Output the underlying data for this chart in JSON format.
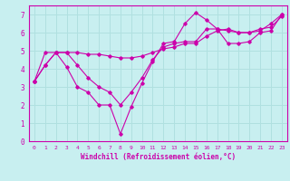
{
  "xlabel": "Windchill (Refroidissement éolien,°C)",
  "bg_color": "#c8eff0",
  "grid_color": "#b0e0e0",
  "line_color": "#cc00aa",
  "xlim": [
    -0.5,
    23.5
  ],
  "ylim": [
    0,
    7.5
  ],
  "xticks": [
    0,
    1,
    2,
    3,
    4,
    5,
    6,
    7,
    8,
    9,
    10,
    11,
    12,
    13,
    14,
    15,
    16,
    17,
    18,
    19,
    20,
    21,
    22,
    23
  ],
  "yticks": [
    0,
    1,
    2,
    3,
    4,
    5,
    6,
    7
  ],
  "series": {
    "line1": {
      "x": [
        0,
        1,
        2,
        3,
        4,
        5,
        6,
        7,
        8,
        9,
        10,
        11,
        12,
        13,
        14,
        15,
        16,
        17,
        18,
        19,
        20,
        21,
        22,
        23
      ],
      "y": [
        3.3,
        4.2,
        4.9,
        4.1,
        3.0,
        2.7,
        2.0,
        2.0,
        0.4,
        1.9,
        3.2,
        4.4,
        5.4,
        5.5,
        6.5,
        7.1,
        6.7,
        6.2,
        6.1,
        6.0,
        6.0,
        6.1,
        6.5,
        7.0
      ]
    },
    "line2": {
      "x": [
        0,
        1,
        2,
        3,
        4,
        5,
        6,
        7,
        8,
        9,
        10,
        11,
        12,
        13,
        14,
        15,
        16,
        17,
        18,
        19,
        20,
        21,
        22,
        23
      ],
      "y": [
        3.3,
        4.2,
        4.9,
        4.9,
        4.2,
        3.5,
        3.0,
        2.7,
        2.0,
        2.7,
        3.5,
        4.5,
        5.2,
        5.4,
        5.5,
        5.5,
        6.2,
        6.2,
        5.4,
        5.4,
        5.5,
        6.0,
        6.1,
        7.0
      ]
    },
    "line3": {
      "x": [
        0,
        1,
        2,
        3,
        4,
        5,
        6,
        7,
        8,
        9,
        10,
        11,
        12,
        13,
        14,
        15,
        16,
        17,
        18,
        19,
        20,
        21,
        22,
        23
      ],
      "y": [
        3.3,
        4.9,
        4.9,
        4.9,
        4.9,
        4.8,
        4.8,
        4.7,
        4.6,
        4.6,
        4.7,
        4.9,
        5.1,
        5.2,
        5.4,
        5.4,
        5.8,
        6.1,
        6.2,
        6.0,
        6.0,
        6.2,
        6.3,
        6.9
      ]
    }
  }
}
